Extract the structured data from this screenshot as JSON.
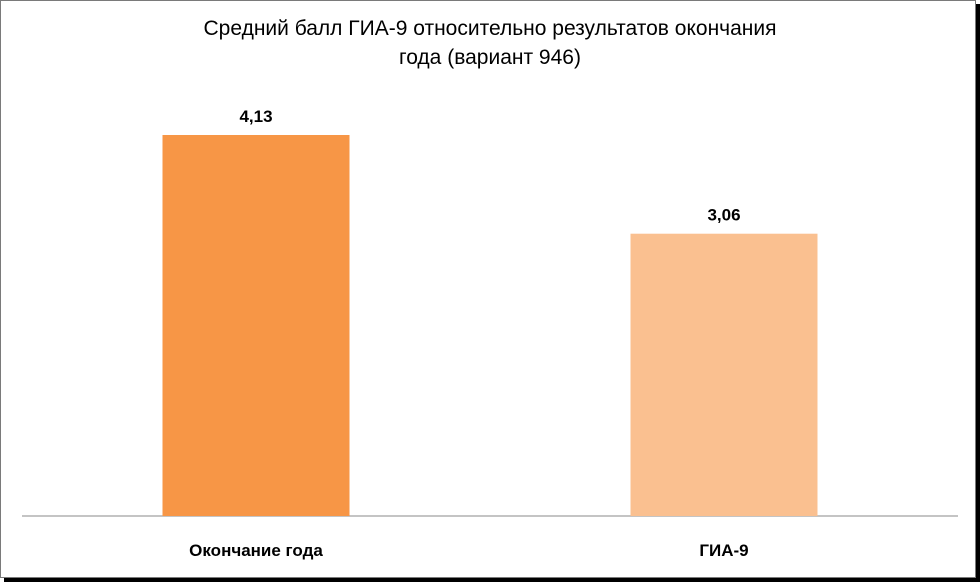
{
  "chart_data": {
    "type": "bar",
    "title": "Средний балл ГИА-9 относительно результатов окончания года (вариант 946)",
    "title_lines": [
      "Средний балл ГИА-9 относительно результатов окончания",
      "года (вариант 946)"
    ],
    "categories": [
      "Окончание года",
      "ГИА-9"
    ],
    "values": [
      4.13,
      3.06
    ],
    "value_labels": [
      "4,13",
      "3,06"
    ],
    "colors": [
      "#f79646",
      "#fac090"
    ],
    "ylim": [
      0,
      4.13
    ],
    "grid": false,
    "legend": "none"
  }
}
